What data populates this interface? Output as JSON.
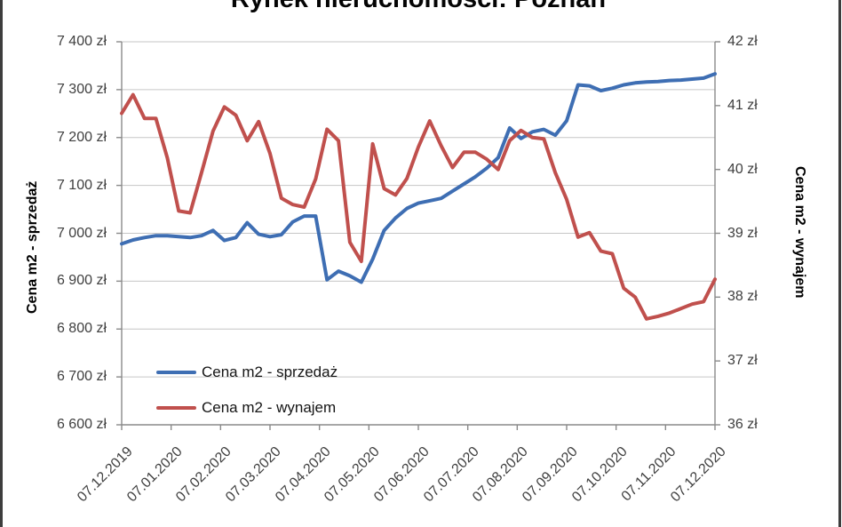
{
  "title": "Rynek nieruchomości: Poznań",
  "left_axis": {
    "title": "Cena m2 - sprzedaż",
    "tick_labels": [
      "7 400 zł",
      "7 300 zł",
      "7 200 zł",
      "7 100 zł",
      "7 000 zł",
      "6 900 zł",
      "6 800 zł",
      "6 700 zł",
      "6 600 zł"
    ]
  },
  "right_axis": {
    "title": "Cena m2 - wynajem",
    "tick_labels": [
      "42 zł",
      "41 zł",
      "40 zł",
      "39 zł",
      "38 zł",
      "37 zł",
      "36 zł"
    ]
  },
  "x_axis": {
    "tick_labels": [
      "07.12.2019",
      "07.01.2020",
      "07.02.2020",
      "07.03.2020",
      "07.04.2020",
      "07.05.2020",
      "07.06.2020",
      "07.07.2020",
      "07.08.2020",
      "07.09.2020",
      "07.10.2020",
      "07.11.2020",
      "07.12.2020"
    ]
  },
  "legend": [
    {
      "label": "Cena m2 - sprzedaż",
      "color": "#3e6eb3"
    },
    {
      "label": "Cena m2 - wynajem",
      "color": "#c0504d"
    }
  ],
  "colors": {
    "series_sale": "#3e6eb3",
    "series_rent": "#c0504d",
    "gridline": "#c6c6c6",
    "axis_line": "#8a8a8a",
    "tick_text": "#3f3f3f",
    "frame_border": "#3d3d3d"
  },
  "chart_data": {
    "type": "line",
    "title": "Rynek nieruchomości: Poznań",
    "x_tick_labels": [
      "07.12.2019",
      "07.01.2020",
      "07.02.2020",
      "07.03.2020",
      "07.04.2020",
      "07.05.2020",
      "07.06.2020",
      "07.07.2020",
      "07.08.2020",
      "07.09.2020",
      "07.10.2020",
      "07.11.2020",
      "07.12.2020"
    ],
    "x_sampling": "weekly points from 07.12.2019 to 07.12.2020",
    "left_ylabel": "Cena m2 - sprzedaż",
    "right_ylabel": "Cena m2 - wynajem",
    "left_ylim": [
      6600,
      7400
    ],
    "right_ylim": [
      36,
      42
    ],
    "left_tick_step": 100,
    "right_tick_step": 1,
    "grid": true,
    "legend_position": "inside bottom-left",
    "series": [
      {
        "name": "Cena m2 - sprzedaż",
        "axis": "left",
        "color": "#3e6eb3",
        "values": [
          6978,
          6986,
          6991,
          6995,
          6995,
          6993,
          6991,
          6995,
          7006,
          6985,
          6991,
          7022,
          6998,
          6993,
          6997,
          7024,
          7036,
          7036,
          6903,
          6921,
          6911,
          6898,
          6946,
          7006,
          7032,
          7052,
          7063,
          7068,
          7073,
          7088,
          7103,
          7118,
          7136,
          7158,
          7220,
          7198,
          7212,
          7217,
          7205,
          7235,
          7310,
          7308,
          7298,
          7303,
          7310,
          7314,
          7316,
          7317,
          7319,
          7320,
          7322,
          7324,
          7333
        ]
      },
      {
        "name": "Cena m2 - wynajem",
        "axis": "right",
        "color": "#c0504d",
        "values": [
          40.88,
          41.17,
          40.8,
          40.8,
          40.18,
          39.35,
          39.32,
          39.95,
          40.6,
          40.98,
          40.85,
          40.45,
          40.75,
          40.25,
          39.55,
          39.45,
          39.41,
          39.85,
          40.63,
          40.45,
          38.86,
          38.56,
          40.4,
          39.7,
          39.6,
          39.86,
          40.35,
          40.76,
          40.37,
          40.03,
          40.27,
          40.27,
          40.16,
          40.0,
          40.45,
          40.61,
          40.5,
          40.48,
          39.95,
          39.53,
          38.94,
          39.01,
          38.72,
          38.68,
          38.14,
          38.0,
          37.66,
          37.7,
          37.75,
          37.82,
          37.89,
          37.93,
          38.28
        ]
      }
    ]
  }
}
